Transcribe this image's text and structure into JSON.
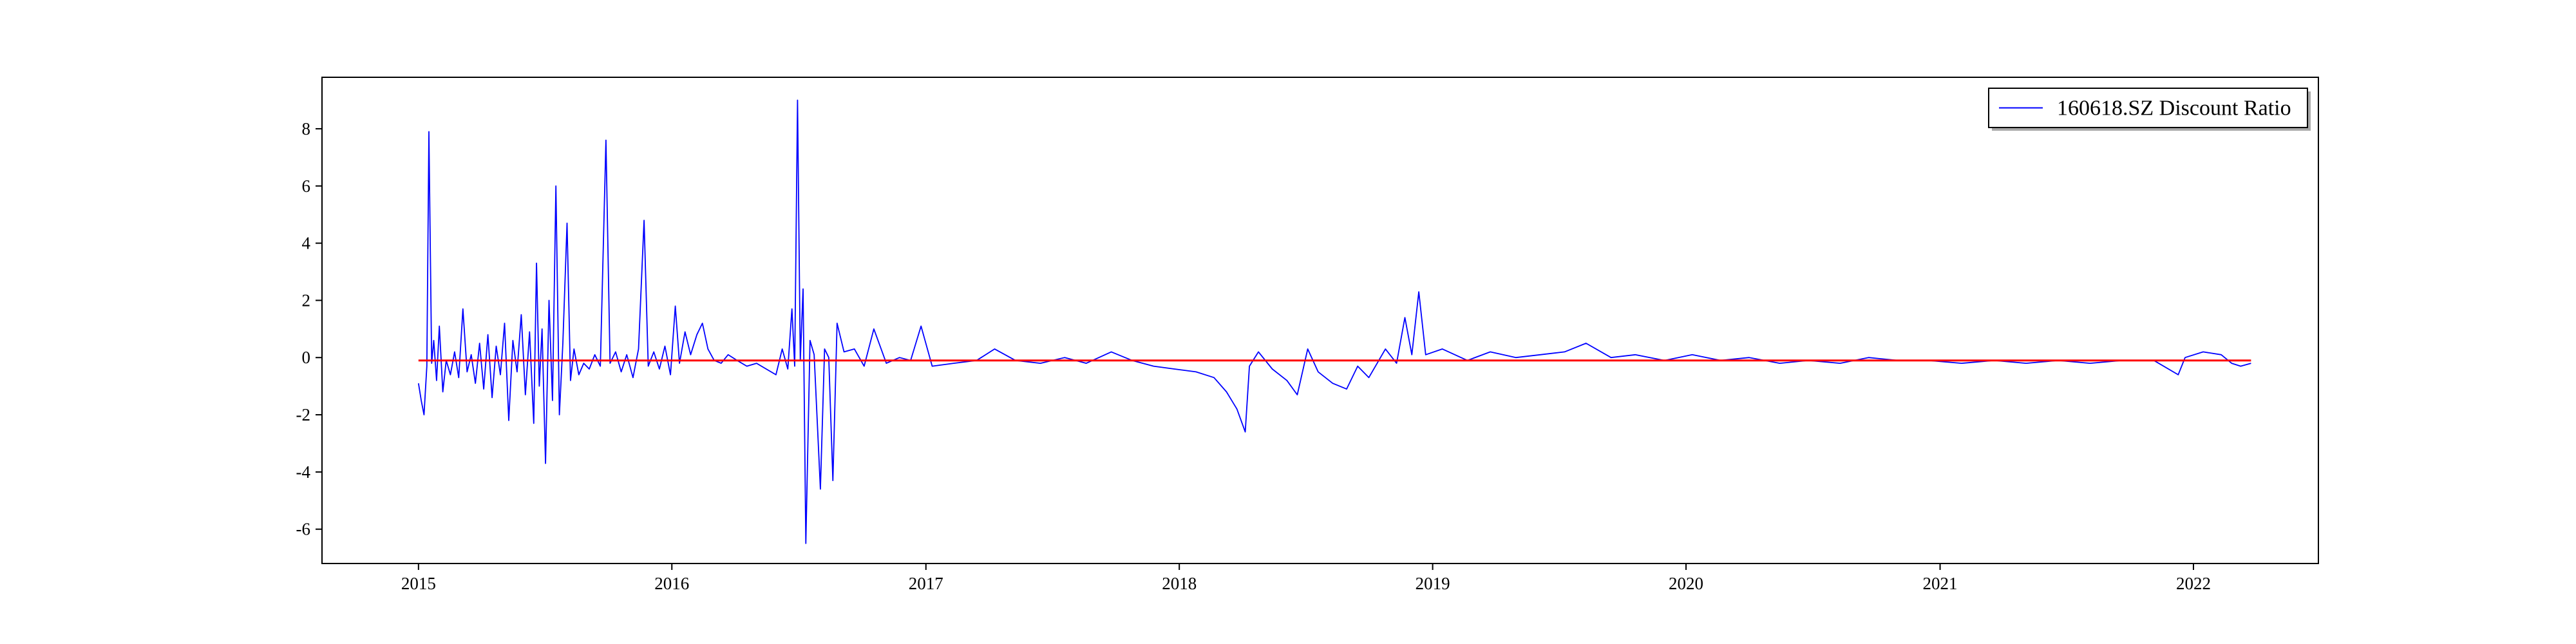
{
  "chart_data": {
    "type": "line",
    "title": "",
    "xlabel": "",
    "ylabel": "",
    "x_range": [
      "2014-08-15",
      "2022-06-30"
    ],
    "ylim": [
      -7.2,
      9.8
    ],
    "x_ticks": [
      "2015",
      "2016",
      "2017",
      "2018",
      "2019",
      "2020",
      "2021",
      "2022"
    ],
    "y_ticks": [
      -6,
      -4,
      -2,
      0,
      2,
      4,
      6,
      8
    ],
    "grid": false,
    "legend_position": "top-right",
    "series": [
      {
        "name": "160618.SZ Discount Ratio",
        "color": "#0000ff",
        "points": [
          [
            "2015-01-01",
            -0.9
          ],
          [
            "2015-01-05",
            -1.5
          ],
          [
            "2015-01-09",
            -2.0
          ],
          [
            "2015-01-13",
            -0.3
          ],
          [
            "2015-01-16",
            7.9
          ],
          [
            "2015-01-20",
            -0.2
          ],
          [
            "2015-01-23",
            0.6
          ],
          [
            "2015-01-27",
            -0.8
          ],
          [
            "2015-01-31",
            1.1
          ],
          [
            "2015-02-05",
            -1.2
          ],
          [
            "2015-02-10",
            -0.1
          ],
          [
            "2015-02-16",
            -0.6
          ],
          [
            "2015-02-22",
            0.2
          ],
          [
            "2015-02-28",
            -0.7
          ],
          [
            "2015-03-06",
            1.7
          ],
          [
            "2015-03-12",
            -0.5
          ],
          [
            "2015-03-18",
            0.1
          ],
          [
            "2015-03-24",
            -0.9
          ],
          [
            "2015-03-30",
            0.5
          ],
          [
            "2015-04-05",
            -1.1
          ],
          [
            "2015-04-11",
            0.8
          ],
          [
            "2015-04-17",
            -1.4
          ],
          [
            "2015-04-23",
            0.4
          ],
          [
            "2015-04-29",
            -0.6
          ],
          [
            "2015-05-05",
            1.2
          ],
          [
            "2015-05-11",
            -2.2
          ],
          [
            "2015-05-17",
            0.6
          ],
          [
            "2015-05-23",
            -0.5
          ],
          [
            "2015-05-29",
            1.5
          ],
          [
            "2015-06-04",
            -1.3
          ],
          [
            "2015-06-10",
            0.9
          ],
          [
            "2015-06-16",
            -2.3
          ],
          [
            "2015-06-20",
            3.3
          ],
          [
            "2015-06-24",
            -1.0
          ],
          [
            "2015-06-28",
            1.0
          ],
          [
            "2015-07-03",
            -3.7
          ],
          [
            "2015-07-08",
            2.0
          ],
          [
            "2015-07-13",
            -1.5
          ],
          [
            "2015-07-18",
            6.0
          ],
          [
            "2015-07-23",
            -2.0
          ],
          [
            "2015-07-28",
            0.5
          ],
          [
            "2015-08-03",
            4.7
          ],
          [
            "2015-08-08",
            -0.8
          ],
          [
            "2015-08-13",
            0.3
          ],
          [
            "2015-08-20",
            -0.6
          ],
          [
            "2015-08-27",
            -0.2
          ],
          [
            "2015-09-04",
            -0.4
          ],
          [
            "2015-09-12",
            0.1
          ],
          [
            "2015-09-20",
            -0.3
          ],
          [
            "2015-09-28",
            7.6
          ],
          [
            "2015-10-04",
            -0.2
          ],
          [
            "2015-10-12",
            0.2
          ],
          [
            "2015-10-20",
            -0.5
          ],
          [
            "2015-10-28",
            0.1
          ],
          [
            "2015-11-06",
            -0.7
          ],
          [
            "2015-11-14",
            0.3
          ],
          [
            "2015-11-22",
            4.8
          ],
          [
            "2015-11-28",
            -0.3
          ],
          [
            "2015-12-06",
            0.2
          ],
          [
            "2015-12-14",
            -0.4
          ],
          [
            "2015-12-22",
            0.4
          ],
          [
            "2015-12-30",
            -0.6
          ],
          [
            "2016-01-06",
            1.8
          ],
          [
            "2016-01-12",
            -0.2
          ],
          [
            "2016-01-20",
            0.9
          ],
          [
            "2016-01-28",
            0.1
          ],
          [
            "2016-02-06",
            0.8
          ],
          [
            "2016-02-14",
            1.2
          ],
          [
            "2016-02-22",
            0.3
          ],
          [
            "2016-03-02",
            -0.1
          ],
          [
            "2016-03-12",
            -0.2
          ],
          [
            "2016-03-22",
            0.1
          ],
          [
            "2016-04-04",
            -0.1
          ],
          [
            "2016-04-18",
            -0.3
          ],
          [
            "2016-05-02",
            -0.2
          ],
          [
            "2016-05-16",
            -0.4
          ],
          [
            "2016-05-30",
            -0.6
          ],
          [
            "2016-06-08",
            0.3
          ],
          [
            "2016-06-16",
            -0.4
          ],
          [
            "2016-06-22",
            1.7
          ],
          [
            "2016-06-26",
            -0.3
          ],
          [
            "2016-06-30",
            9.0
          ],
          [
            "2016-07-04",
            -0.1
          ],
          [
            "2016-07-08",
            2.4
          ],
          [
            "2016-07-12",
            -6.5
          ],
          [
            "2016-07-18",
            0.6
          ],
          [
            "2016-07-24",
            0.1
          ],
          [
            "2016-08-02",
            -4.6
          ],
          [
            "2016-08-08",
            0.3
          ],
          [
            "2016-08-14",
            0.0
          ],
          [
            "2016-08-20",
            -4.3
          ],
          [
            "2016-08-26",
            1.2
          ],
          [
            "2016-09-05",
            0.2
          ],
          [
            "2016-09-20",
            0.3
          ],
          [
            "2016-10-04",
            -0.3
          ],
          [
            "2016-10-18",
            1.0
          ],
          [
            "2016-11-05",
            -0.2
          ],
          [
            "2016-11-24",
            0.0
          ],
          [
            "2016-12-10",
            -0.1
          ],
          [
            "2016-12-25",
            1.1
          ],
          [
            "2017-01-10",
            -0.3
          ],
          [
            "2017-02-10",
            -0.2
          ],
          [
            "2017-03-15",
            -0.1
          ],
          [
            "2017-04-10",
            0.3
          ],
          [
            "2017-05-10",
            -0.1
          ],
          [
            "2017-06-15",
            -0.2
          ],
          [
            "2017-07-20",
            0.0
          ],
          [
            "2017-08-20",
            -0.2
          ],
          [
            "2017-09-25",
            0.2
          ],
          [
            "2017-10-25",
            -0.1
          ],
          [
            "2017-11-25",
            -0.3
          ],
          [
            "2017-12-25",
            -0.4
          ],
          [
            "2018-01-25",
            -0.5
          ],
          [
            "2018-02-20",
            -0.7
          ],
          [
            "2018-03-10",
            -1.2
          ],
          [
            "2018-03-25",
            -1.8
          ],
          [
            "2018-04-06",
            -2.6
          ],
          [
            "2018-04-12",
            -0.3
          ],
          [
            "2018-04-25",
            0.2
          ],
          [
            "2018-05-15",
            -0.4
          ],
          [
            "2018-06-05",
            -0.8
          ],
          [
            "2018-06-20",
            -1.3
          ],
          [
            "2018-07-05",
            0.3
          ],
          [
            "2018-07-20",
            -0.5
          ],
          [
            "2018-08-10",
            -0.9
          ],
          [
            "2018-08-30",
            -1.1
          ],
          [
            "2018-09-15",
            -0.3
          ],
          [
            "2018-10-01",
            -0.7
          ],
          [
            "2018-10-25",
            0.3
          ],
          [
            "2018-11-10",
            -0.2
          ],
          [
            "2018-11-22",
            1.4
          ],
          [
            "2018-12-02",
            0.1
          ],
          [
            "2018-12-12",
            2.3
          ],
          [
            "2018-12-22",
            0.1
          ],
          [
            "2019-01-15",
            0.3
          ],
          [
            "2019-02-20",
            -0.1
          ],
          [
            "2019-03-25",
            0.2
          ],
          [
            "2019-05-01",
            0.0
          ],
          [
            "2019-06-05",
            0.1
          ],
          [
            "2019-07-10",
            0.2
          ],
          [
            "2019-08-10",
            0.5
          ],
          [
            "2019-09-15",
            0.0
          ],
          [
            "2019-10-20",
            0.1
          ],
          [
            "2019-12-01",
            -0.1
          ],
          [
            "2020-01-10",
            0.1
          ],
          [
            "2020-02-20",
            -0.1
          ],
          [
            "2020-04-01",
            0.0
          ],
          [
            "2020-05-15",
            -0.2
          ],
          [
            "2020-06-25",
            -0.1
          ],
          [
            "2020-08-10",
            -0.2
          ],
          [
            "2020-09-20",
            0.0
          ],
          [
            "2020-11-01",
            -0.1
          ],
          [
            "2020-12-15",
            -0.1
          ],
          [
            "2021-02-01",
            -0.2
          ],
          [
            "2021-03-20",
            -0.1
          ],
          [
            "2021-05-05",
            -0.2
          ],
          [
            "2021-06-20",
            -0.1
          ],
          [
            "2021-08-05",
            -0.2
          ],
          [
            "2021-09-20",
            -0.1
          ],
          [
            "2021-11-05",
            -0.1
          ],
          [
            "2021-12-10",
            -0.6
          ],
          [
            "2021-12-20",
            0.0
          ],
          [
            "2022-01-15",
            0.2
          ],
          [
            "2022-02-10",
            0.1
          ],
          [
            "2022-02-25",
            -0.2
          ],
          [
            "2022-03-10",
            -0.3
          ],
          [
            "2022-03-25",
            -0.2
          ]
        ]
      },
      {
        "color": "#ff0000",
        "points": [
          [
            "2015-01-01",
            -0.1
          ],
          [
            "2022-03-25",
            -0.1
          ]
        ]
      }
    ]
  }
}
